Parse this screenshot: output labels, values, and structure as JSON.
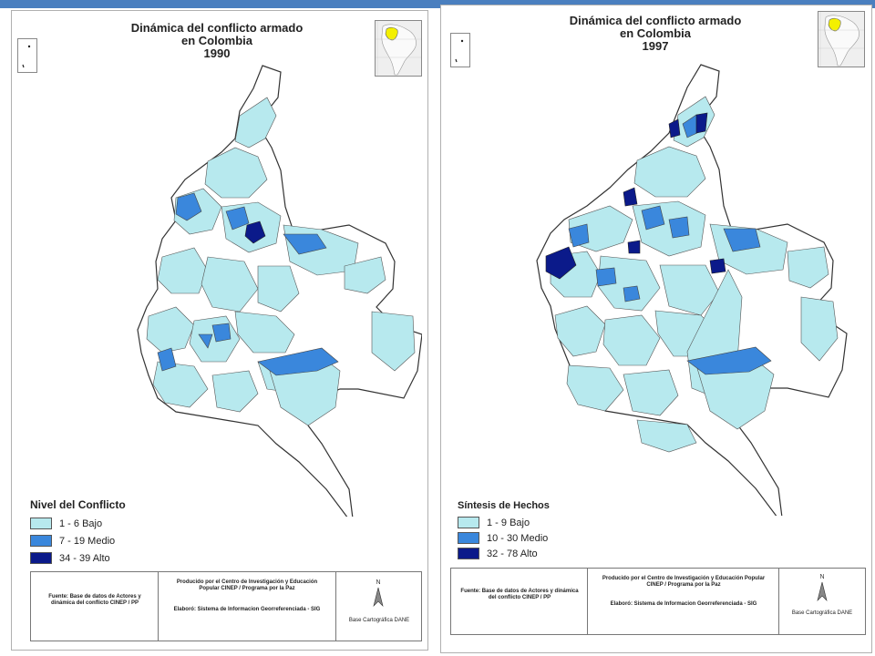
{
  "colors": {
    "bajo": "#b7e9ee",
    "medio": "#3a87dc",
    "alto": "#0b1a8a",
    "header_bar": "#4a7fbf",
    "inset_highlight": "#f4f000"
  },
  "left": {
    "title_line1": "Dinámica del conflicto armado",
    "title_line2": "en Colombia",
    "title_line3": "1990",
    "legend_title": "Nivel del Conflicto",
    "legend_items": [
      "1 - 6 Bajo",
      "7 - 19  Medio",
      "34 - 39 Alto"
    ],
    "source": "Fuente:  Base de datos de Actores y dinámica del conflicto CINEP / PP",
    "produced_by": "Producido por el Centro de Investigación y Educación Popular CINEP / Programa por la Paz",
    "elaboro": "Elaboró:  Sistema de Informacion Georreferenciada - SIG",
    "base": "Base Cartográfica DANE",
    "north": "N"
  },
  "right": {
    "title_line1": "Dinámica del conflicto armado",
    "title_line2": "en Colombia",
    "title_line3": "1997",
    "legend_title": "Síntesis de Hechos",
    "legend_items": [
      "1 - 9  Bajo",
      "10 - 30  Medio",
      "32 - 78  Alto"
    ],
    "source": "Fuente:  Base de datos de Actores y dinámica del conflicto CINEP / PP",
    "produced_by": "Producido por el Centro de Investigación y Educación Popular CINEP / Programa por la Paz",
    "elaboro": "Elaboró:  Sistema de Informacion Georreferenciada - SIG",
    "base": "Base Cartográfica DANE",
    "north": "N"
  }
}
